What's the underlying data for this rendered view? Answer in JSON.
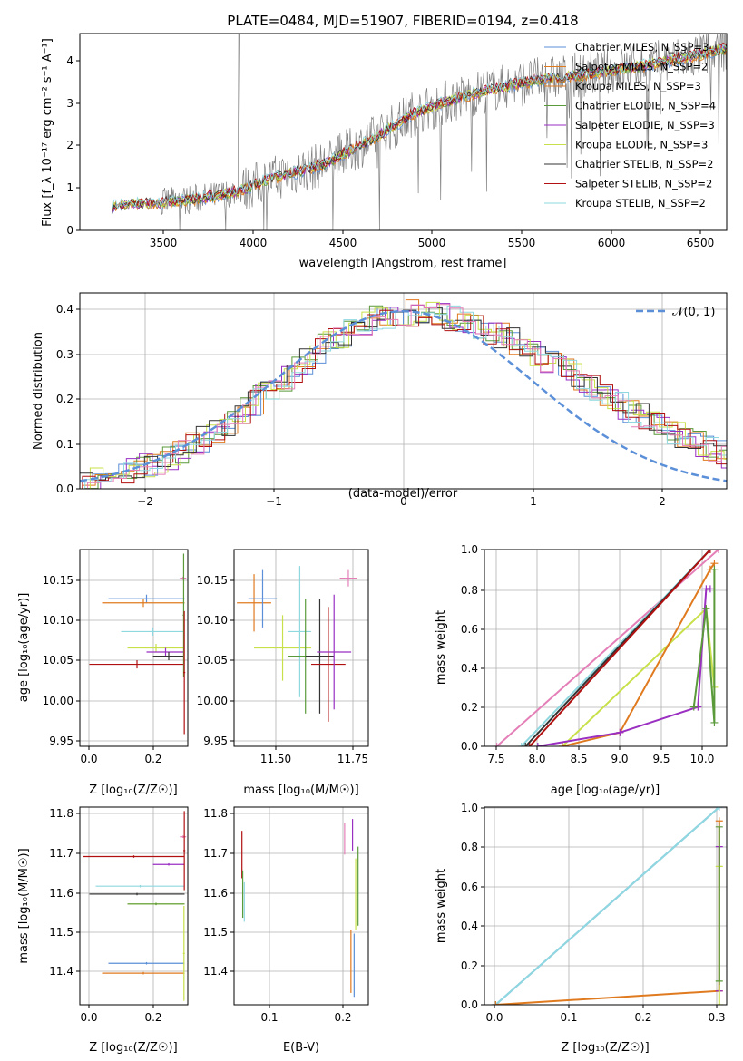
{
  "colors": {
    "blue": "#5b8fd8",
    "orange": "#e07a1f",
    "green": "#5a9a3a",
    "purple": "#9a2fc2",
    "yellowgreen": "#c8e04a",
    "black": "#333333",
    "red": "#b01010",
    "cyan": "#8fd8e0",
    "pink": "#e47fb8",
    "gray": "#808080",
    "grid": "#b0b0b0",
    "dashed": "#5b8fd8"
  },
  "chart_data": [
    {
      "type": "line",
      "title": "PLATE=0484, MJD=51907, FIBERID=0194, z=0.418",
      "xlabel": "wavelength [Angstrom, rest frame]",
      "ylabel": "Flux [f_λ 10⁻¹⁷ erg cm⁻² s⁻¹ A⁻¹]",
      "xlim": [
        3050,
        6650
      ],
      "ylim": [
        0,
        4.65
      ],
      "xticks": [
        "3500",
        "4000",
        "4500",
        "5000",
        "5500",
        "6000",
        "6500"
      ],
      "yticks": [
        "0",
        "1",
        "2",
        "3",
        "4"
      ],
      "grid": false,
      "legend_position": "top-right",
      "continuum_x": [
        3230,
        3260,
        3500,
        3800,
        3950,
        4100,
        4400,
        4700,
        4900,
        5100,
        5300,
        5600,
        5900,
        6200,
        6500,
        6650
      ],
      "continuum_y": [
        0.55,
        0.6,
        0.65,
        0.8,
        0.95,
        1.2,
        1.55,
        2.2,
        2.75,
        3.05,
        3.3,
        3.55,
        3.7,
        3.9,
        4.15,
        4.3
      ],
      "series": [
        {
          "name": "Chabrier MILES, N_SSP=3",
          "color": "blue"
        },
        {
          "name": "Salpeter MILES, N_SSP=2",
          "color": "orange"
        },
        {
          "name": "Kroupa MILES, N_SSP=3",
          "color": "orange"
        },
        {
          "name": "Chabrier ELODIE, N_SSP=4",
          "color": "green"
        },
        {
          "name": "Salpeter ELODIE, N_SSP=3",
          "color": "purple"
        },
        {
          "name": "Kroupa ELODIE, N_SSP=3",
          "color": "yellowgreen"
        },
        {
          "name": "Chabrier STELIB, N_SSP=2",
          "color": "black"
        },
        {
          "name": "Salpeter STELIB, N_SSP=2",
          "color": "red"
        },
        {
          "name": "Kroupa STELIB, N_SSP=2",
          "color": "cyan"
        }
      ]
    },
    {
      "type": "line",
      "xlabel": "(data-model)/error",
      "ylabel": "Normed distribution",
      "xlim": [
        -2.5,
        2.5
      ],
      "ylim": [
        0,
        0.44
      ],
      "xticks": [
        "−2",
        "−1",
        "0",
        "1",
        "2"
      ],
      "yticks": [
        "0.0",
        "0.1",
        "0.2",
        "0.3",
        "0.4"
      ],
      "grid": true,
      "legend_position": "top-right",
      "gaussian_label": "𝒩(0, 1)",
      "histogram_colors": [
        "blue",
        "orange",
        "green",
        "purple",
        "yellowgreen",
        "black",
        "red",
        "cyan",
        "pink"
      ]
    },
    {
      "type": "scatter",
      "xlabel": "Z [log₁₀(Z/Z☉)]",
      "ylabel": "age  [log₁₀(age/yr)]",
      "xlim": [
        -0.03,
        0.31
      ],
      "ylim": [
        9.94,
        10.18
      ],
      "xticks": [
        "0.0",
        "0.2"
      ],
      "yticks": [
        "9.95",
        "10.00",
        "10.05",
        "10.10",
        "10.15"
      ],
      "grid": true,
      "points": [
        {
          "x": 0.18,
          "y": 10.12,
          "xerr": 0.12,
          "yerr": 0.005,
          "color": "blue"
        },
        {
          "x": 0.17,
          "y": 10.115,
          "xerr": 0.13,
          "yerr": 0.005,
          "color": "orange"
        },
        {
          "x": 0.2,
          "y": 10.08,
          "xerr": 0.1,
          "yerr": 0.005,
          "color": "cyan"
        },
        {
          "x": 0.21,
          "y": 10.06,
          "xerr": 0.09,
          "yerr": 0.005,
          "color": "yellowgreen"
        },
        {
          "x": 0.24,
          "y": 10.055,
          "xerr": 0.06,
          "yerr": 0.005,
          "color": "purple"
        },
        {
          "x": 0.25,
          "y": 10.05,
          "xerr": 0.05,
          "yerr": 0.005,
          "color": "black"
        },
        {
          "x": 0.15,
          "y": 10.04,
          "xerr": 0.15,
          "yerr": 0.005,
          "color": "red"
        },
        {
          "x": 0.295,
          "y": 10.145,
          "xerr": 0.01,
          "yerr": 0.002,
          "color": "pink"
        },
        {
          "x": 0.297,
          "y": 10.1,
          "xerr": 0.003,
          "yerr": 0.075,
          "color": "green"
        },
        {
          "x": 0.299,
          "y": 10.03,
          "xerr": 0.003,
          "yerr": 0.075,
          "color": "red"
        }
      ]
    },
    {
      "type": "scatter",
      "xlabel": "mass [log₁₀(M/M☉)]",
      "ylabel": "",
      "xlim": [
        11.35,
        11.82
      ],
      "ylim": [
        9.94,
        10.18
      ],
      "xticks": [
        "11.50",
        "11.75"
      ],
      "yticks": [
        "9.95",
        "10.00",
        "10.05",
        "10.10",
        "10.15"
      ],
      "grid": true,
      "points": [
        {
          "x": 11.42,
          "y": 10.115,
          "xerr": 0.06,
          "yerr": 0.035,
          "color": "orange"
        },
        {
          "x": 11.45,
          "y": 10.12,
          "xerr": 0.05,
          "yerr": 0.035,
          "color": "blue"
        },
        {
          "x": 11.52,
          "y": 10.06,
          "xerr": 0.1,
          "yerr": 0.04,
          "color": "yellowgreen"
        },
        {
          "x": 11.58,
          "y": 10.08,
          "xerr": 0.04,
          "yerr": 0.08,
          "color": "cyan"
        },
        {
          "x": 11.6,
          "y": 10.05,
          "xerr": 0.06,
          "yerr": 0.07,
          "color": "green"
        },
        {
          "x": 11.65,
          "y": 10.05,
          "xerr": 0.05,
          "yerr": 0.07,
          "color": "black"
        },
        {
          "x": 11.68,
          "y": 10.04,
          "xerr": 0.06,
          "yerr": 0.07,
          "color": "red"
        },
        {
          "x": 11.7,
          "y": 10.055,
          "xerr": 0.06,
          "yerr": 0.07,
          "color": "purple"
        },
        {
          "x": 11.75,
          "y": 10.145,
          "xerr": 0.03,
          "yerr": 0.01,
          "color": "pink"
        }
      ]
    },
    {
      "type": "line",
      "xlabel": "age  [log₁₀(age/yr)]",
      "ylabel": "mass weight",
      "xlim": [
        7.35,
        10.3
      ],
      "ylim": [
        0,
        1.0
      ],
      "xticks": [
        "7.5",
        "8.0",
        "8.5",
        "9.0",
        "9.5",
        "10.0"
      ],
      "yticks": [
        "0.0",
        "0.2",
        "0.4",
        "0.6",
        "0.8",
        "1.0"
      ],
      "grid": true,
      "series": [
        {
          "color": "pink",
          "x": [
            7.5,
            10.2
          ],
          "y": [
            0,
            1.0
          ]
        },
        {
          "color": "cyan",
          "x": [
            7.8,
            10.1
          ],
          "y": [
            0,
            1.0
          ]
        },
        {
          "color": "black",
          "x": [
            7.85,
            10.1
          ],
          "y": [
            0,
            1.0
          ]
        },
        {
          "color": "red",
          "x": [
            7.9,
            10.1
          ],
          "y": [
            0,
            1.0
          ]
        },
        {
          "color": "yellowgreen",
          "x": [
            8.3,
            10.05,
            10.15
          ],
          "y": [
            0,
            0.7,
            0.3
          ]
        },
        {
          "color": "orange",
          "x": [
            8.3,
            9.0,
            10.1,
            10.15
          ],
          "y": [
            0,
            0.07,
            0.9,
            0.93
          ]
        },
        {
          "color": "purple",
          "x": [
            8.0,
            9.0,
            9.95,
            10.05,
            10.1
          ],
          "y": [
            0,
            0.07,
            0.2,
            0.8,
            0.8
          ]
        },
        {
          "color": "green",
          "x": [
            9.9,
            10.05,
            10.15,
            10.15
          ],
          "y": [
            0.2,
            0.7,
            0.12,
            0.9
          ]
        }
      ]
    },
    {
      "type": "scatter",
      "xlabel": "Z [log₁₀(Z/Z☉)]",
      "ylabel": "mass [log₁₀(M/M☉)]",
      "xlim": [
        -0.03,
        0.31
      ],
      "ylim": [
        11.32,
        11.82
      ],
      "xticks": [
        "0.0",
        "0.2"
      ],
      "yticks": [
        "11.4",
        "11.5",
        "11.6",
        "11.7",
        "11.8"
      ],
      "grid": true,
      "points": [
        {
          "x": 0.14,
          "y": 11.695,
          "xerr": 0.16,
          "yerr": 0.003,
          "color": "red"
        },
        {
          "x": 0.25,
          "y": 11.675,
          "xerr": 0.05,
          "yerr": 0.003,
          "color": "purple"
        },
        {
          "x": 0.15,
          "y": 11.6,
          "xerr": 0.15,
          "yerr": 0.003,
          "color": "black"
        },
        {
          "x": 0.16,
          "y": 11.62,
          "xerr": 0.14,
          "yerr": 0.003,
          "color": "cyan"
        },
        {
          "x": 0.21,
          "y": 11.575,
          "xerr": 0.09,
          "yerr": 0.003,
          "color": "yellowgreen"
        },
        {
          "x": 0.21,
          "y": 11.575,
          "xerr": 0.09,
          "yerr": 0.003,
          "color": "green"
        },
        {
          "x": 0.18,
          "y": 11.425,
          "xerr": 0.12,
          "yerr": 0.003,
          "color": "blue"
        },
        {
          "x": 0.17,
          "y": 11.4,
          "xerr": 0.13,
          "yerr": 0.003,
          "color": "orange"
        },
        {
          "x": 0.295,
          "y": 11.745,
          "xerr": 0.01,
          "yerr": 0.003,
          "color": "pink"
        },
        {
          "x": 0.299,
          "y": 11.71,
          "xerr": 0.003,
          "yerr": 0.1,
          "color": "red"
        },
        {
          "x": 0.298,
          "y": 11.45,
          "xerr": 0.003,
          "yerr": 0.12,
          "color": "yellowgreen"
        }
      ]
    },
    {
      "type": "scatter",
      "xlabel": "E(B-V)",
      "ylabel": "",
      "xlim": [
        0.08,
        0.25
      ],
      "ylim": [
        11.32,
        11.82
      ],
      "xticks": [
        "0.1",
        "0.2"
      ],
      "yticks": [
        "11.4",
        "11.5",
        "11.6",
        "11.7",
        "11.8"
      ],
      "grid": true,
      "points": [
        {
          "x": 0.09,
          "y": 11.7,
          "xerr": 0,
          "yerr": 0.06,
          "color": "red"
        },
        {
          "x": 0.091,
          "y": 11.6,
          "xerr": 0,
          "yerr": 0.06,
          "color": "green"
        },
        {
          "x": 0.093,
          "y": 11.58,
          "xerr": 0,
          "yerr": 0.05,
          "color": "cyan"
        },
        {
          "x": 0.22,
          "y": 11.74,
          "xerr": 0,
          "yerr": 0.04,
          "color": "pink"
        },
        {
          "x": 0.23,
          "y": 11.75,
          "xerr": 0,
          "yerr": 0.04,
          "color": "purple"
        },
        {
          "x": 0.228,
          "y": 11.43,
          "xerr": 0,
          "yerr": 0.08,
          "color": "orange"
        },
        {
          "x": 0.232,
          "y": 11.42,
          "xerr": 0,
          "yerr": 0.08,
          "color": "blue"
        },
        {
          "x": 0.234,
          "y": 11.6,
          "xerr": 0,
          "yerr": 0.09,
          "color": "yellowgreen"
        },
        {
          "x": 0.237,
          "y": 11.62,
          "xerr": 0,
          "yerr": 0.1,
          "color": "green"
        }
      ]
    },
    {
      "type": "line",
      "xlabel": "Z [log₁₀(Z/Z☉)]",
      "ylabel": "mass weight",
      "xlim": [
        -0.015,
        0.31
      ],
      "ylim": [
        0,
        1.0
      ],
      "xticks": [
        "0.0",
        "0.1",
        "0.2",
        "0.3"
      ],
      "yticks": [
        "0.0",
        "0.2",
        "0.4",
        "0.6",
        "0.8",
        "1.0"
      ],
      "grid": true,
      "series": [
        {
          "color": "blue",
          "x": [
            0,
            0.3
          ],
          "y": [
            0,
            1.0
          ]
        },
        {
          "color": "cyan",
          "x": [
            0,
            0.3
          ],
          "y": [
            0,
            1.0
          ]
        },
        {
          "color": "orange",
          "x": [
            0,
            0.3,
            0.3
          ],
          "y": [
            0,
            0.07,
            0.93
          ]
        },
        {
          "color": "purple",
          "x": [
            0.3,
            0.3
          ],
          "y": [
            0.07,
            0.8
          ]
        },
        {
          "color": "yellowgreen",
          "x": [
            0.3,
            0.3
          ],
          "y": [
            0,
            0.7
          ]
        },
        {
          "color": "green",
          "x": [
            0.3,
            0.3
          ],
          "y": [
            0.12,
            0.9
          ]
        }
      ]
    }
  ]
}
